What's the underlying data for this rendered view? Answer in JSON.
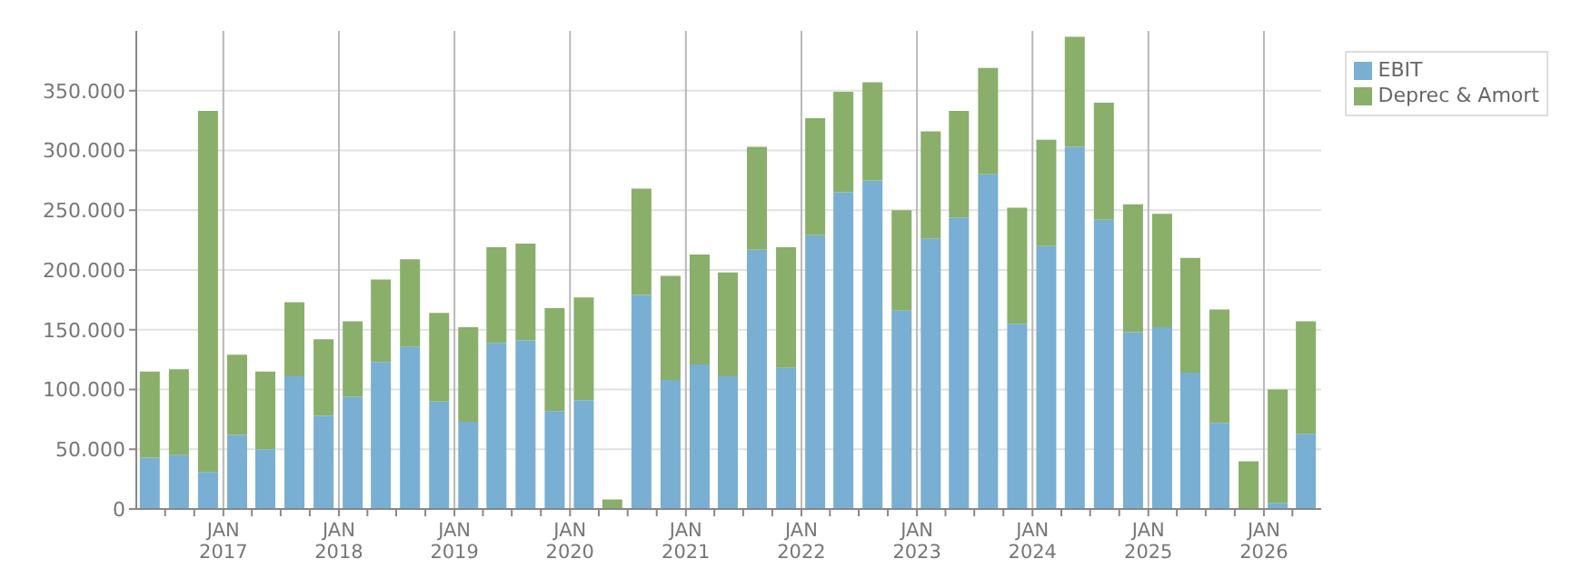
{
  "chart_data": {
    "type": "bar",
    "stacked": true,
    "legend": "top right",
    "grid": true,
    "x": [
      "2016-05-15",
      "2016-08-15",
      "2016-11-15",
      "2017-02-15",
      "2017-05-15",
      "2017-08-15",
      "2017-11-15",
      "2018-02-15",
      "2018-05-15",
      "2018-08-15",
      "2018-11-15",
      "2019-02-15",
      "2019-05-15",
      "2019-08-15",
      "2019-11-15",
      "2020-02-15",
      "2020-05-15",
      "2020-08-15",
      "2020-11-15",
      "2021-02-15",
      "2021-05-15",
      "2021-08-15",
      "2021-11-15",
      "2022-02-15",
      "2022-05-15",
      "2022-08-15",
      "2022-11-15",
      "2023-02-15",
      "2023-05-15",
      "2023-08-15",
      "2023-11-15",
      "2024-02-15",
      "2024-05-15",
      "2024-08-15",
      "2024-11-15",
      "2025-02-15",
      "2025-05-15",
      "2025-08-15",
      "2025-11-15",
      "2026-02-15",
      "2026-05-15"
    ],
    "series": [
      {
        "name": "EBIT",
        "color": "#78afd2",
        "values": [
          43000,
          45000,
          31000,
          62000,
          50000,
          111000,
          78000,
          94000,
          123000,
          136000,
          90000,
          73000,
          139000,
          141000,
          82000,
          91000,
          0,
          179000,
          108000,
          121000,
          111000,
          217000,
          118000,
          229000,
          265000,
          275000,
          166000,
          226000,
          244000,
          280000,
          155000,
          220000,
          303000,
          242000,
          148000,
          152000,
          114000,
          72000,
          0,
          5000,
          63000
        ]
      },
      {
        "name": "Deprec & Amort",
        "color": "#89af6a",
        "values": [
          72000,
          72000,
          302000,
          67000,
          65000,
          62000,
          64000,
          63000,
          69000,
          73000,
          74000,
          79000,
          80000,
          81000,
          86000,
          86000,
          8000,
          89000,
          87000,
          92000,
          87000,
          86000,
          101000,
          98000,
          84000,
          82000,
          84000,
          90000,
          89000,
          89000,
          97000,
          89000,
          92000,
          98000,
          107000,
          95000,
          96000,
          95000,
          40000,
          95000,
          94000
        ]
      }
    ],
    "ylim": [
      0,
      400000
    ],
    "yticks": [
      0,
      {
        "value": 50000,
        "label": "50.000"
      },
      {
        "value": 100000,
        "label": "100.000"
      },
      {
        "value": 150000,
        "label": "150.000"
      },
      {
        "value": 200000,
        "label": "200.000"
      },
      {
        "value": 250000,
        "label": "250.000"
      },
      {
        "value": 300000,
        "label": "300.000"
      },
      {
        "value": 350000,
        "label": "350.000"
      }
    ],
    "xlim": [
      "2016-04-01",
      "2026-07-01"
    ],
    "xticks": [
      {
        "value": "2016-07-01",
        "label": null
      },
      {
        "value": "2016-10-01",
        "label": null
      },
      {
        "value": "2017-01-01",
        "label": "JAN 2017"
      },
      {
        "value": "2017-04-01",
        "label": null
      },
      {
        "value": "2017-07-01",
        "label": null
      },
      {
        "value": "2017-10-01",
        "label": null
      },
      {
        "value": "2018-01-01",
        "label": "JAN 2018"
      },
      {
        "value": "2018-04-01",
        "label": null
      },
      {
        "value": "2018-07-01",
        "label": null
      },
      {
        "value": "2018-10-01",
        "label": null
      },
      {
        "value": "2019-01-01",
        "label": "JAN 2019"
      },
      {
        "value": "2019-04-01",
        "label": null
      },
      {
        "value": "2019-07-01",
        "label": null
      },
      {
        "value": "2019-10-01",
        "label": null
      },
      {
        "value": "2020-01-01",
        "label": "JAN 2020"
      },
      {
        "value": "2020-04-01",
        "label": null
      },
      {
        "value": "2020-07-01",
        "label": null
      },
      {
        "value": "2020-10-01",
        "label": null
      },
      {
        "value": "2021-01-01",
        "label": "JAN 2021"
      },
      {
        "value": "2021-04-01",
        "label": null
      },
      {
        "value": "2021-07-01",
        "label": null
      },
      {
        "value": "2021-10-01",
        "label": null
      },
      {
        "value": "2022-01-01",
        "label": "JAN 2022"
      },
      {
        "value": "2022-04-01",
        "label": null
      },
      {
        "value": "2022-07-01",
        "label": null
      },
      {
        "value": "2022-10-01",
        "label": null
      },
      {
        "value": "2023-01-01",
        "label": "JAN 2023"
      },
      {
        "value": "2023-04-01",
        "label": null
      },
      {
        "value": "2023-07-01",
        "label": null
      },
      {
        "value": "2023-10-01",
        "label": null
      },
      {
        "value": "2024-01-01",
        "label": "JAN 2024"
      },
      {
        "value": "2024-04-01",
        "label": null
      },
      {
        "value": "2024-07-01",
        "label": null
      },
      {
        "value": "2024-10-01",
        "label": null
      },
      {
        "value": "2025-01-01",
        "label": "JAN 2025"
      },
      {
        "value": "2025-04-01",
        "label": null
      },
      {
        "value": "2025-07-01",
        "label": null
      },
      {
        "value": "2025-10-01",
        "label": null
      },
      {
        "value": "2026-01-01",
        "label": "JAN 2026"
      },
      {
        "value": "2026-04-01",
        "label": null
      }
    ]
  }
}
